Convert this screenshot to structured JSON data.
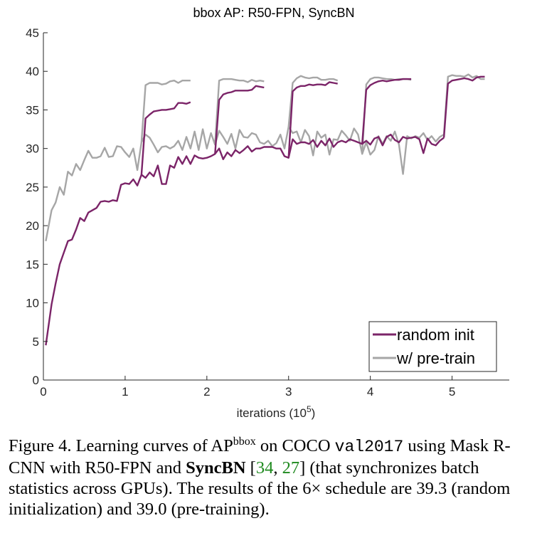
{
  "chart_data": {
    "type": "line",
    "title": "bbox AP: R50-FPN, SyncBN",
    "xlabel": "iterations (10^5)",
    "xlabel_base": "iterations (10",
    "xlabel_exp": "5",
    "xlabel_tail": ")",
    "ylabel": "",
    "xlim": [
      0,
      5.7
    ],
    "ylim": [
      0,
      45
    ],
    "xticks": [
      0,
      1,
      2,
      3,
      4,
      5
    ],
    "yticks": [
      0,
      5,
      10,
      15,
      20,
      25,
      30,
      35,
      40,
      45
    ],
    "grid": false,
    "legend_position": "bottom-right",
    "colors": {
      "random_init": "#7b2468",
      "pretrain": "#a6a6a6"
    },
    "series": [
      {
        "name": "random init",
        "key": "random_init",
        "segments": [
          {
            "x": [
              0.03,
              0.1,
              0.15,
              0.2,
              0.25,
              0.3,
              0.35,
              0.4,
              0.45,
              0.5,
              0.55,
              0.6,
              0.65,
              0.7,
              0.75,
              0.8,
              0.85,
              0.9,
              0.95,
              1.0,
              1.05,
              1.1,
              1.15,
              1.2,
              1.25,
              1.3,
              1.35,
              1.4,
              1.45,
              1.5,
              1.55,
              1.6,
              1.65,
              1.7,
              1.75,
              1.8,
              1.85,
              1.9,
              1.95,
              2.0,
              2.05,
              2.1,
              2.15,
              2.2,
              2.25,
              2.3,
              2.35,
              2.4,
              2.45,
              2.5,
              2.55,
              2.6,
              2.65,
              2.7,
              2.75,
              2.8,
              2.85,
              2.9,
              2.95,
              3.0,
              3.05,
              3.1,
              3.15,
              3.2,
              3.25,
              3.3,
              3.35,
              3.4,
              3.45,
              3.5,
              3.55,
              3.6,
              3.65,
              3.7,
              3.75,
              3.8,
              3.85,
              3.9,
              3.95,
              4.0,
              4.05,
              4.1,
              4.15,
              4.2,
              4.25,
              4.3,
              4.35,
              4.4,
              4.45,
              4.5,
              4.55,
              4.6,
              4.65,
              4.7,
              4.75,
              4.8,
              4.85,
              4.9
            ],
            "y": [
              4.5,
              9.8,
              12.5,
              15.0,
              16.5,
              18.0,
              18.2,
              19.5,
              21.0,
              20.6,
              21.7,
              22.0,
              22.3,
              23.1,
              23.2,
              23.1,
              23.3,
              23.2,
              25.3,
              25.5,
              25.4,
              26.0,
              25.2,
              26.6,
              26.2,
              26.9,
              26.4,
              27.8,
              25.4,
              25.4,
              27.8,
              27.5,
              28.9,
              28.0,
              29.0,
              28.0,
              29.1,
              28.8,
              28.7,
              28.8,
              29.0,
              29.3,
              30.0,
              28.6,
              29.5,
              29.0,
              29.8,
              29.4,
              29.8,
              30.3,
              29.6,
              30.0,
              30.0,
              30.2,
              30.2,
              30.2,
              30.0,
              30.0,
              29.0,
              28.8,
              31.2,
              30.6,
              30.8,
              30.8,
              30.6,
              31.1,
              30.2,
              31.0,
              30.4,
              31.3,
              30.2,
              30.8,
              31.0,
              30.8,
              31.2,
              31.0,
              30.8,
              30.6,
              31.0,
              30.5,
              31.3,
              31.5,
              30.4,
              31.5,
              31.8,
              31.1,
              30.8,
              31.5,
              31.3,
              31.4,
              31.5,
              31.2,
              29.4,
              31.3,
              30.6,
              30.4,
              31.0,
              31.4
            ]
          },
          {
            "x": [
              1.2,
              1.25,
              1.3,
              1.35,
              1.4,
              1.45,
              1.5,
              1.55,
              1.6,
              1.65,
              1.7,
              1.75,
              1.8
            ],
            "y": [
              26.6,
              33.9,
              34.4,
              34.8,
              34.9,
              35.0,
              35.0,
              35.1,
              35.2,
              35.9,
              35.9,
              35.8,
              36.0
            ]
          },
          {
            "x": [
              2.1,
              2.15,
              2.2,
              2.25,
              2.3,
              2.35,
              2.4,
              2.45,
              2.5,
              2.55,
              2.6,
              2.65,
              2.7
            ],
            "y": [
              29.3,
              36.3,
              37.0,
              37.2,
              37.3,
              37.5,
              37.5,
              37.5,
              37.5,
              37.6,
              38.1,
              38.0,
              37.9
            ]
          },
          {
            "x": [
              3.0,
              3.05,
              3.1,
              3.15,
              3.2,
              3.25,
              3.3,
              3.35,
              3.4,
              3.45,
              3.5,
              3.55,
              3.6
            ],
            "y": [
              28.8,
              37.4,
              37.9,
              38.1,
              38.1,
              38.3,
              38.2,
              38.3,
              38.3,
              38.2,
              38.6,
              38.5,
              38.4
            ]
          },
          {
            "x": [
              3.9,
              3.95,
              4.0,
              4.05,
              4.1,
              4.15,
              4.2,
              4.25,
              4.3,
              4.35,
              4.4,
              4.45,
              4.5
            ],
            "y": [
              30.6,
              37.6,
              38.2,
              38.5,
              38.7,
              38.8,
              38.7,
              38.8,
              38.9,
              38.9,
              39.0,
              39.0,
              39.0
            ]
          },
          {
            "x": [
              4.9,
              4.95,
              5.0,
              5.05,
              5.1,
              5.15,
              5.2,
              5.25,
              5.3,
              5.35,
              5.4
            ],
            "y": [
              31.4,
              38.4,
              38.8,
              38.9,
              39.0,
              39.1,
              39.0,
              38.8,
              39.2,
              39.3,
              39.3
            ]
          }
        ]
      },
      {
        "name": "w/ pre-train",
        "key": "pretrain",
        "segments": [
          {
            "x": [
              0.03,
              0.1,
              0.15,
              0.2,
              0.25,
              0.3,
              0.35,
              0.4,
              0.45,
              0.5,
              0.55,
              0.6,
              0.65,
              0.7,
              0.75,
              0.8,
              0.85,
              0.9,
              0.95,
              1.0,
              1.05,
              1.1,
              1.15,
              1.2,
              1.25,
              1.3,
              1.35,
              1.4,
              1.45,
              1.5,
              1.55,
              1.6,
              1.65,
              1.7,
              1.75,
              1.8,
              1.85,
              1.9,
              1.95,
              2.0,
              2.05,
              2.1,
              2.15,
              2.2,
              2.25,
              2.3,
              2.35,
              2.4,
              2.45,
              2.5,
              2.55,
              2.6,
              2.65,
              2.7,
              2.75,
              2.8,
              2.85,
              2.9,
              2.95,
              3.0,
              3.05,
              3.1,
              3.15,
              3.2,
              3.25,
              3.3,
              3.35,
              3.4,
              3.45,
              3.5,
              3.55,
              3.6,
              3.65,
              3.7,
              3.75,
              3.8,
              3.85,
              3.9,
              3.95,
              4.0,
              4.05,
              4.1,
              4.15,
              4.2,
              4.25,
              4.3,
              4.35,
              4.4,
              4.45,
              4.5,
              4.55,
              4.6,
              4.65,
              4.7,
              4.75,
              4.8,
              4.85,
              4.9
            ],
            "y": [
              18.0,
              22.0,
              23.0,
              25.0,
              24.0,
              27.0,
              26.5,
              28.0,
              27.2,
              28.5,
              29.7,
              28.8,
              28.8,
              29.0,
              30.1,
              28.9,
              29.0,
              30.3,
              30.2,
              29.5,
              28.9,
              30.0,
              27.2,
              30.8,
              31.8,
              31.4,
              30.5,
              29.5,
              30.2,
              30.3,
              30.0,
              30.3,
              31.0,
              29.8,
              31.5,
              30.0,
              32.2,
              29.8,
              32.5,
              30.0,
              32.0,
              30.5,
              32.3,
              31.5,
              30.6,
              31.9,
              30.0,
              32.4,
              31.5,
              31.4,
              32.0,
              31.8,
              30.8,
              30.6,
              31.0,
              30.3,
              30.7,
              31.8,
              30.0,
              32.8,
              32.0,
              32.2,
              30.8,
              32.4,
              31.6,
              29.1,
              32.2,
              31.4,
              31.8,
              29.2,
              31.2,
              31.1,
              32.3,
              31.7,
              31.0,
              32.6,
              31.8,
              29.3,
              30.8,
              29.2,
              29.8,
              31.6,
              30.6,
              31.6,
              31.0,
              32.2,
              30.5,
              26.7,
              31.6,
              31.3,
              31.6,
              31.4,
              32.0,
              31.1,
              31.6,
              30.9,
              31.5,
              31.8
            ]
          },
          {
            "x": [
              1.2,
              1.25,
              1.3,
              1.35,
              1.4,
              1.45,
              1.5,
              1.55,
              1.6,
              1.65,
              1.7,
              1.75,
              1.8
            ],
            "y": [
              30.8,
              38.2,
              38.5,
              38.5,
              38.5,
              38.3,
              38.4,
              38.7,
              38.8,
              38.5,
              38.8,
              38.8,
              38.8
            ]
          },
          {
            "x": [
              2.1,
              2.15,
              2.2,
              2.25,
              2.3,
              2.35,
              2.4,
              2.45,
              2.5,
              2.55,
              2.6,
              2.65,
              2.7
            ],
            "y": [
              30.5,
              38.8,
              39.0,
              39.0,
              39.0,
              38.9,
              38.8,
              38.8,
              38.6,
              38.9,
              38.7,
              38.8,
              38.7
            ]
          },
          {
            "x": [
              3.0,
              3.05,
              3.1,
              3.15,
              3.2,
              3.25,
              3.3,
              3.35,
              3.4,
              3.45,
              3.5,
              3.55,
              3.6
            ],
            "y": [
              32.8,
              38.5,
              39.1,
              39.4,
              39.2,
              39.1,
              39.2,
              39.2,
              38.9,
              38.9,
              39.0,
              39.0,
              38.8
            ]
          },
          {
            "x": [
              3.9,
              3.95,
              4.0,
              4.05,
              4.1,
              4.15,
              4.2,
              4.25,
              4.3,
              4.35,
              4.4,
              4.45,
              4.5
            ],
            "y": [
              29.3,
              38.3,
              39.0,
              39.2,
              39.2,
              39.1,
              39.0,
              39.0,
              38.9,
              39.0,
              39.0,
              39.0,
              38.9
            ]
          },
          {
            "x": [
              4.9,
              4.95,
              5.0,
              5.05,
              5.1,
              5.15,
              5.2,
              5.25,
              5.3,
              5.35,
              5.4
            ],
            "y": [
              31.8,
              39.3,
              39.5,
              39.4,
              39.4,
              39.3,
              39.6,
              39.2,
              39.4,
              39.0,
              39.0
            ]
          }
        ]
      }
    ]
  },
  "caption": {
    "figure_label": "Figure 4.",
    "part1": " Learning curves of AP",
    "sup": "bbox",
    "part2": " on COCO ",
    "mono": "val2017",
    "part3": " using Mask R-CNN with R50-FPN and ",
    "bold": "SyncBN",
    "part4": " [",
    "cite1": "34",
    "sep": ", ",
    "cite2": "27",
    "part5": "] (that synchronizes batch statistics across GPUs). The results of the 6× schedule are 39.3 (random initialization) and 39.0 (pre-training)."
  }
}
